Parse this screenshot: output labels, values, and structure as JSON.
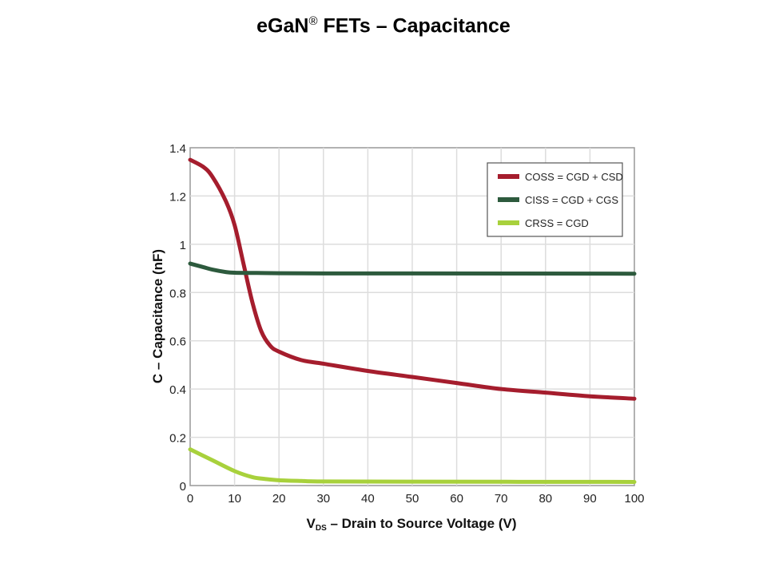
{
  "title": {
    "main": "eGaN",
    "reg": "®",
    "rest": " FETs – Capacitance"
  },
  "chart_data": {
    "type": "line",
    "title": "eGaN® FETs – Capacitance",
    "xlabel": {
      "main": "V",
      "sub": "DS",
      "rest": " – Drain to Source Voltage (V)"
    },
    "ylabel": "C – Capacitance (nF)",
    "xlim": [
      0,
      100
    ],
    "ylim": [
      0,
      1.4
    ],
    "grid": true,
    "legend_position": "top-right",
    "xticks": [
      "0",
      "10",
      "20",
      "30",
      "40",
      "50",
      "60",
      "70",
      "80",
      "90",
      "100"
    ],
    "yticks": [
      "0",
      "0.2",
      "0.4",
      "0.6",
      "0.8",
      "1",
      "1.2",
      "1.4"
    ],
    "series": [
      {
        "name": "COSS = CGD + CSD",
        "color": "#a51d2d",
        "x": [
          0,
          3,
          5,
          8,
          10,
          12,
          14,
          16,
          18,
          20,
          25,
          30,
          40,
          50,
          60,
          70,
          80,
          90,
          100
        ],
        "y": [
          1.35,
          1.32,
          1.28,
          1.18,
          1.08,
          0.92,
          0.76,
          0.64,
          0.58,
          0.555,
          0.52,
          0.505,
          0.475,
          0.45,
          0.425,
          0.4,
          0.385,
          0.37,
          0.36
        ]
      },
      {
        "name": "CISS = CGD + CGS",
        "color": "#2d5a3d",
        "x": [
          0,
          3,
          5,
          8,
          10,
          15,
          20,
          30,
          50,
          100
        ],
        "y": [
          0.92,
          0.905,
          0.895,
          0.885,
          0.882,
          0.881,
          0.88,
          0.879,
          0.879,
          0.878
        ]
      },
      {
        "name": "CRSS = CGD",
        "color": "#a8d13c",
        "x": [
          0,
          5,
          10,
          14,
          17,
          20,
          25,
          30,
          50,
          100
        ],
        "y": [
          0.15,
          0.105,
          0.06,
          0.035,
          0.027,
          0.022,
          0.019,
          0.017,
          0.016,
          0.015
        ]
      }
    ]
  }
}
